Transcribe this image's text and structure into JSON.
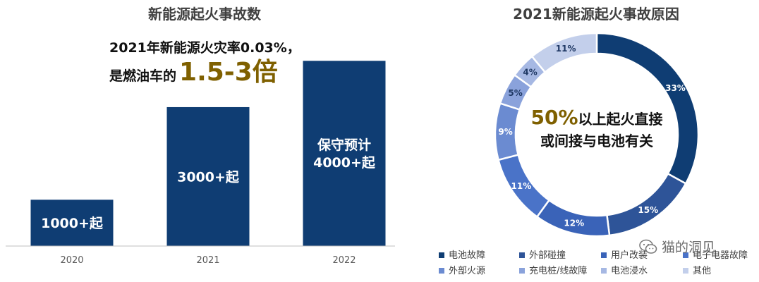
{
  "chart_data": [
    {
      "type": "bar",
      "title": "新能源起火事故数",
      "categories": [
        "2020",
        "2021",
        "2022"
      ],
      "values": [
        1000,
        3000,
        4000
      ],
      "data_labels": [
        "1000+起",
        "3000+起",
        "保守预计 4000+起"
      ],
      "data_label_lines": [
        [
          "1000+起"
        ],
        [
          "3000+起"
        ],
        [
          "保守预计",
          "4000+起"
        ]
      ],
      "ylim": [
        0,
        4400
      ],
      "grid": false,
      "colors": {
        "bar": "#0f3d73",
        "axis": "#bfbfbf"
      },
      "annotation": {
        "line1": "2021年新能源火灾率0.03%，",
        "line2_prefix": "是燃油车的",
        "line2_highlight": "1.5-3倍"
      }
    },
    {
      "type": "pie",
      "title": "2021新能源起火事故原因",
      "donut": true,
      "labels": [
        "电池故障",
        "外部碰撞",
        "用户改装",
        "电子电器故障",
        "外部火源",
        "充电桩/线故障",
        "电池浸水",
        "其他"
      ],
      "values": [
        33,
        15,
        12,
        11,
        9,
        5,
        4,
        11
      ],
      "value_labels": [
        "33%",
        "15%",
        "12%",
        "11%",
        "9%",
        "5%",
        "4%",
        "11%"
      ],
      "colors": [
        "#0f3d73",
        "#2e5498",
        "#3a63b8",
        "#4a73c8",
        "#6b8bd1",
        "#8aa2db",
        "#a6b8e3",
        "#c3cfeb"
      ],
      "center_text": {
        "highlight": "50%",
        "line1_rest": "以上起火直接",
        "line2": "或间接与电池有关"
      },
      "legend_position": "bottom"
    }
  ],
  "watermark": {
    "text": "猫的洞见",
    "icon": "wechat-icon"
  }
}
